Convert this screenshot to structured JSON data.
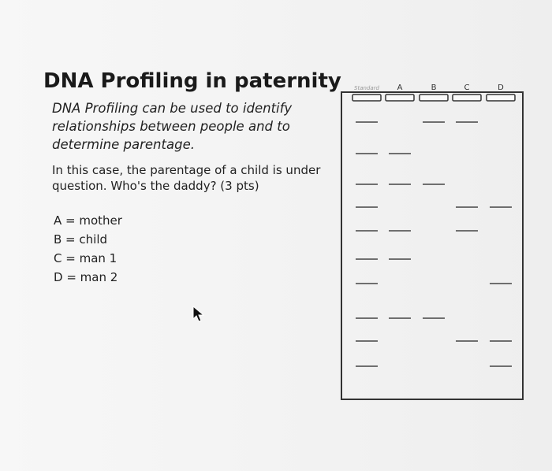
{
  "title": "DNA Profiling in paternity",
  "intro_lines": [
    "DNA Profiling can be used to identify",
    "relationships between people and to",
    "determine parentage."
  ],
  "question_lines": [
    "In this case, the parentage of a child is under",
    "question. Who's the daddy? (3 pts)"
  ],
  "legend": [
    "A = mother",
    "B = child",
    "C = man 1",
    "D = man 2"
  ],
  "gel": {
    "lane_labels": [
      "Standard",
      "A",
      "B",
      "C",
      "D"
    ],
    "bands": {
      "Standard": [
        1,
        2,
        3,
        4,
        5,
        6,
        7,
        8,
        9,
        10
      ],
      "A": [
        2,
        3,
        5,
        6,
        8
      ],
      "B": [
        1,
        3,
        8
      ],
      "C": [
        1,
        4,
        5,
        9
      ],
      "D": [
        4,
        7,
        9,
        10
      ]
    }
  }
}
